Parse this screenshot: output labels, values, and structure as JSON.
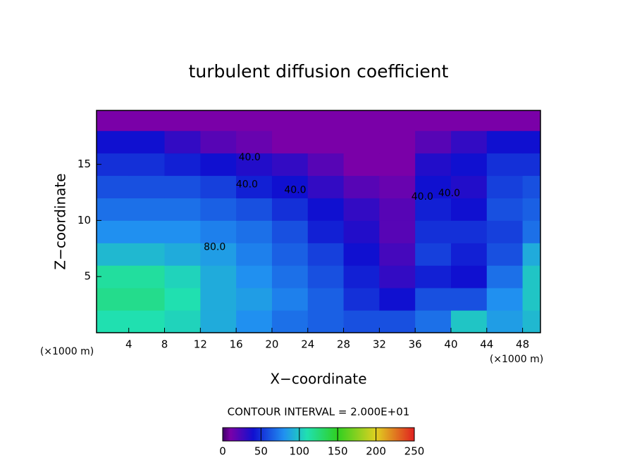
{
  "chart_data": {
    "type": "contour",
    "title": "turbulent diffusion coefficient",
    "x_label": "X−coordinate",
    "y_label": "Z−coordinate",
    "x_unit": "(×1000 m)",
    "y_unit": "(×1000 m)",
    "contour_interval_label": "CONTOUR INTERVAL = 2.000E+01",
    "xlim": [
      0.4,
      50
    ],
    "ylim": [
      0,
      19.8
    ],
    "xticks": [
      4,
      8,
      12,
      16,
      20,
      24,
      28,
      32,
      36,
      40,
      44,
      48
    ],
    "yticks": [
      5,
      10,
      15
    ],
    "field": {
      "x": [
        2,
        6,
        10,
        14,
        18,
        22,
        26,
        30,
        34,
        38,
        42,
        46,
        50
      ],
      "z": [
        1,
        3,
        5,
        7,
        9,
        11,
        13,
        15,
        17,
        19
      ],
      "values": [
        [
          110,
          110,
          105,
          90,
          80,
          70,
          65,
          60,
          60,
          70,
          100,
          85,
          95
        ],
        [
          120,
          120,
          110,
          90,
          85,
          75,
          65,
          50,
          40,
          60,
          60,
          80,
          100
        ],
        [
          115,
          115,
          105,
          90,
          80,
          70,
          60,
          45,
          30,
          45,
          40,
          70,
          100
        ],
        [
          95,
          95,
          90,
          85,
          75,
          65,
          55,
          40,
          25,
          55,
          45,
          60,
          90
        ],
        [
          80,
          80,
          80,
          75,
          70,
          60,
          45,
          35,
          20,
          50,
          50,
          55,
          70
        ],
        [
          70,
          70,
          70,
          65,
          60,
          50,
          40,
          30,
          20,
          45,
          40,
          60,
          65
        ],
        [
          60,
          60,
          60,
          55,
          45,
          40,
          30,
          20,
          15,
          40,
          35,
          55,
          60
        ],
        [
          50,
          50,
          45,
          40,
          35,
          30,
          20,
          10,
          10,
          35,
          40,
          50,
          50
        ],
        [
          40,
          40,
          30,
          20,
          15,
          10,
          10,
          10,
          10,
          20,
          30,
          40,
          40
        ],
        [
          10,
          10,
          10,
          10,
          10,
          10,
          10,
          10,
          10,
          10,
          10,
          10,
          10
        ]
      ]
    },
    "contour_labels": [
      {
        "value": 40,
        "label": "40.0",
        "x": 17.5,
        "z": 15.6
      },
      {
        "value": 40,
        "label": "40.0",
        "x": 17.2,
        "z": 13.2
      },
      {
        "value": 40,
        "label": "40.0",
        "x": 22.6,
        "z": 12.7
      },
      {
        "value": 40,
        "label": "40.0",
        "x": 36.8,
        "z": 12.1
      },
      {
        "value": 40,
        "label": "40.0",
        "x": 39.8,
        "z": 12.4
      },
      {
        "value": 80,
        "label": "80.0",
        "x": 13.6,
        "z": 7.6
      }
    ],
    "colorbar": {
      "lim": [
        0,
        250
      ],
      "ticks": [
        0,
        50,
        100,
        150,
        200,
        250
      ],
      "colormap": [
        {
          "value": 0,
          "color": "#3c0064"
        },
        {
          "value": 10,
          "color": "#7a00a8"
        },
        {
          "value": 40,
          "color": "#1010d0"
        },
        {
          "value": 80,
          "color": "#2090f0"
        },
        {
          "value": 110,
          "color": "#20e0b0"
        },
        {
          "value": 150,
          "color": "#30d020"
        },
        {
          "value": 200,
          "color": "#e0d020"
        },
        {
          "value": 250,
          "color": "#e02020"
        }
      ]
    }
  }
}
